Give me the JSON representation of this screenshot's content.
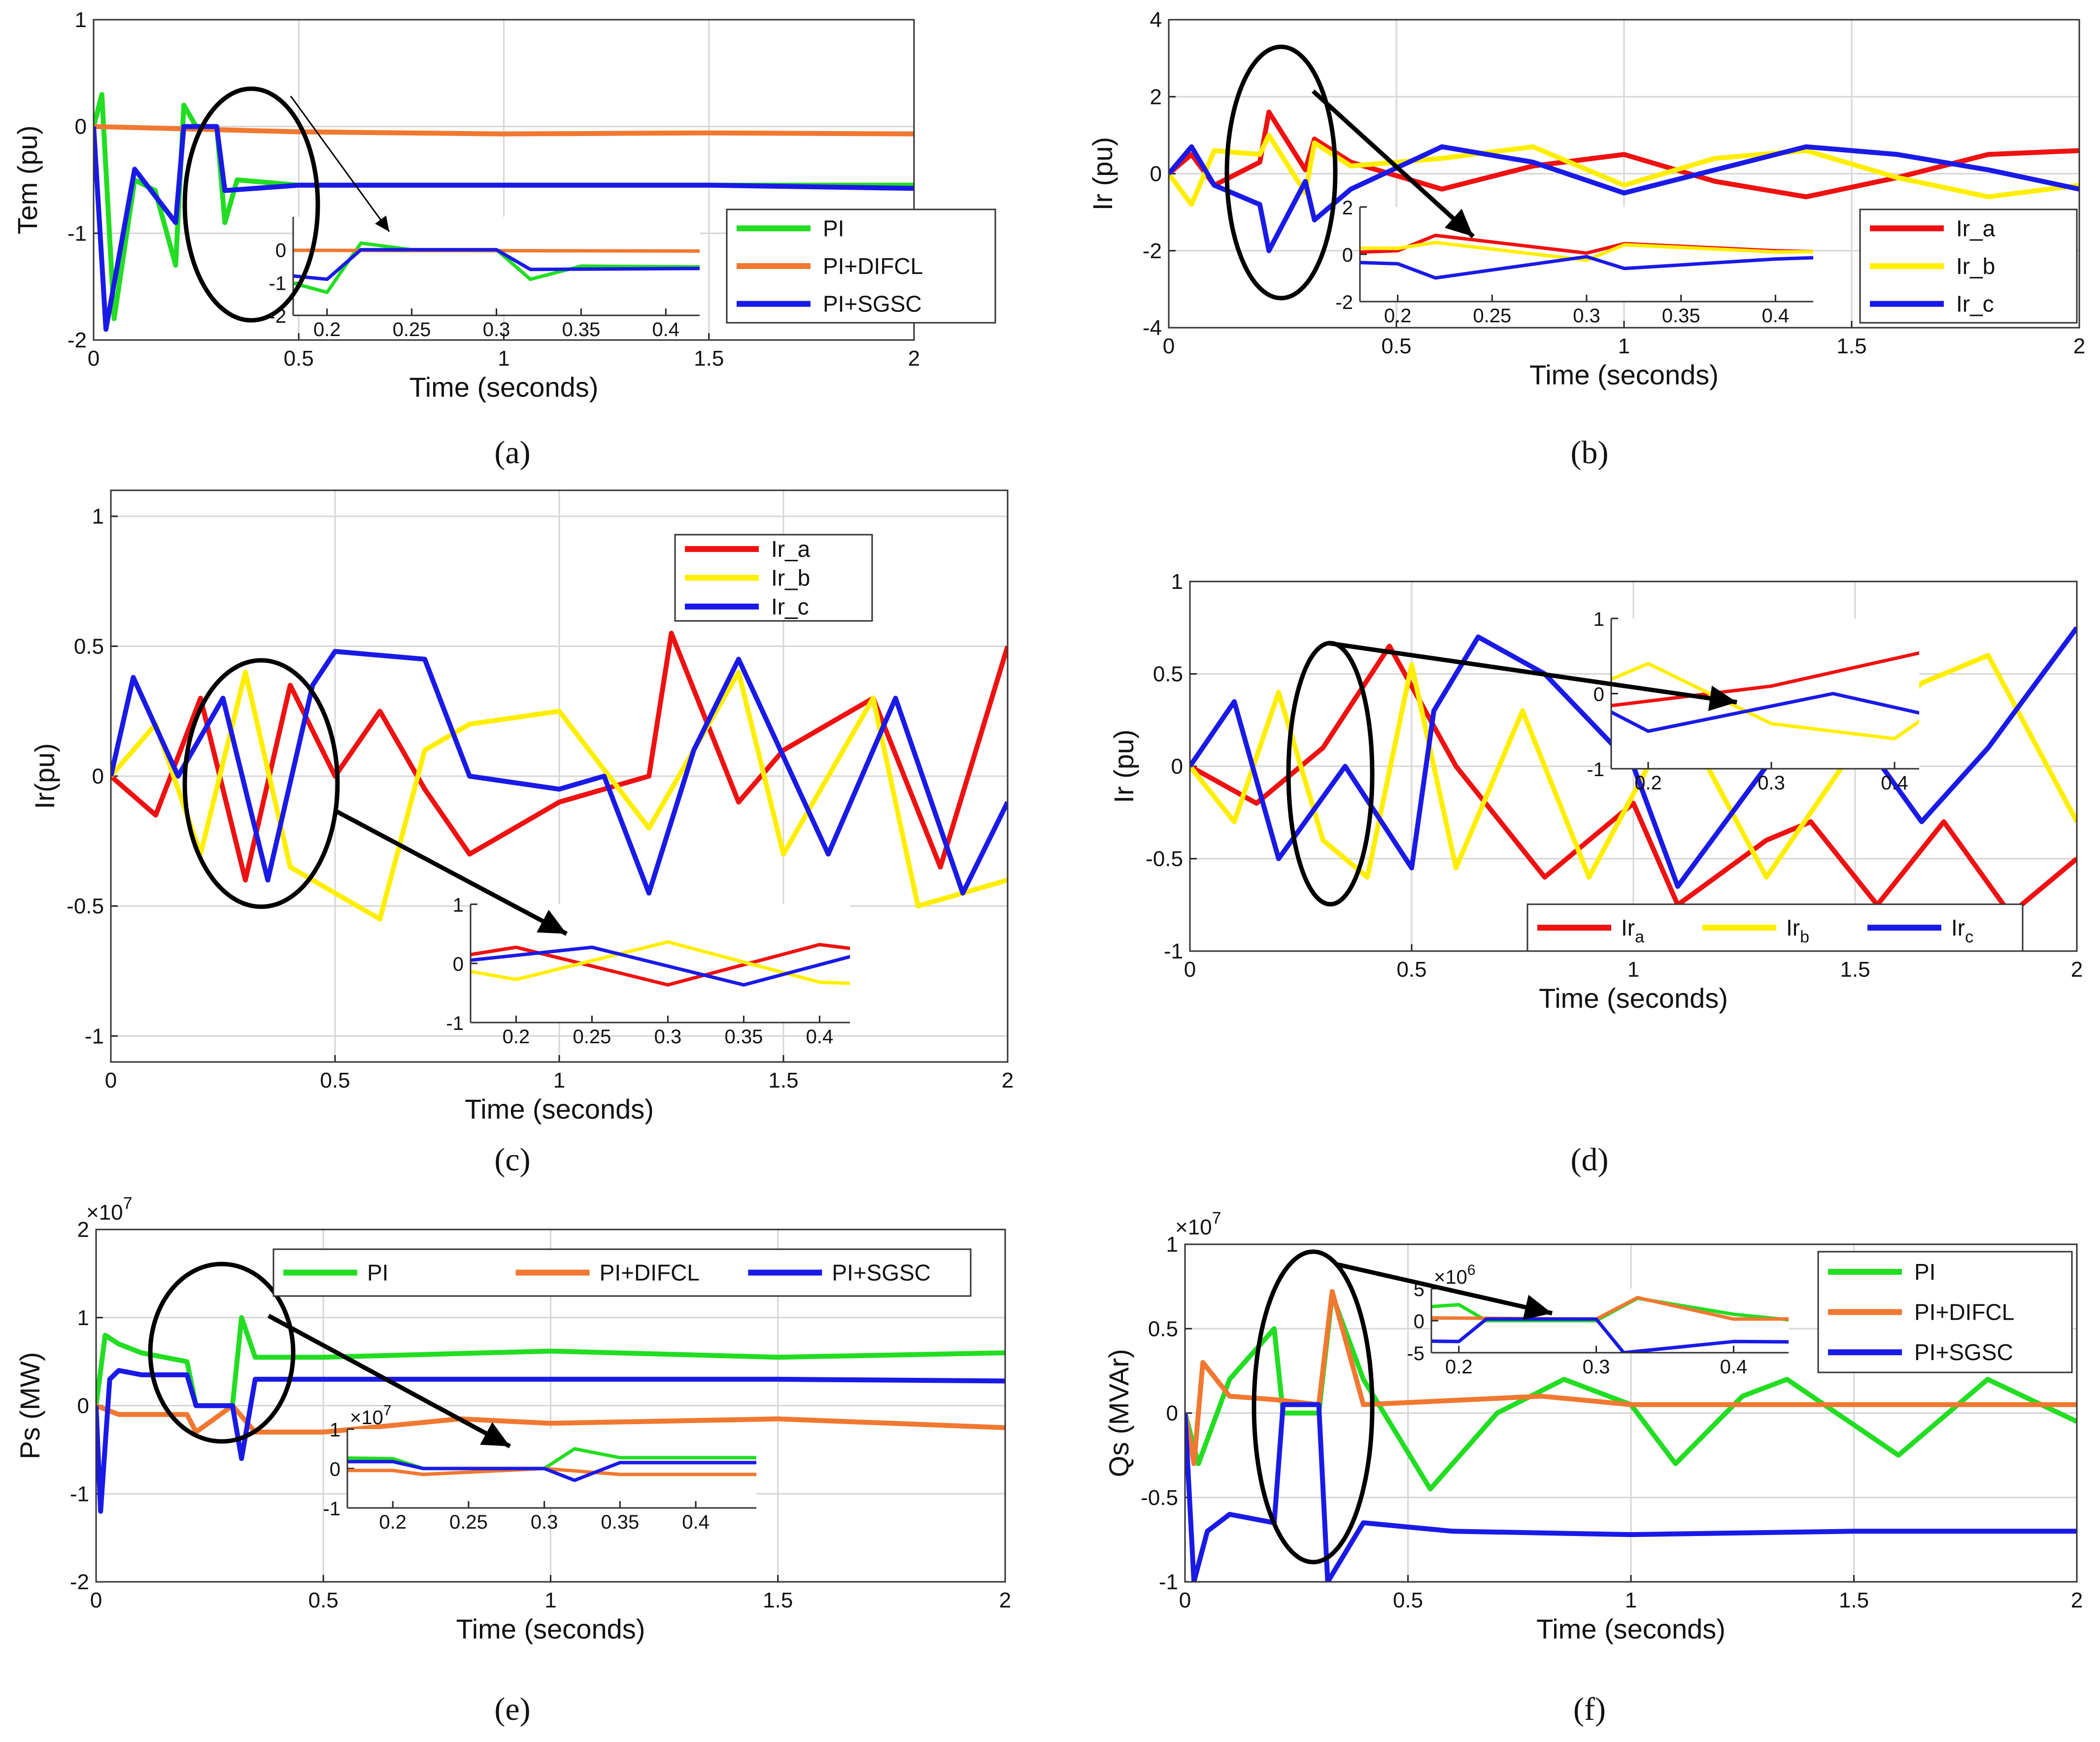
{
  "chart_data": [
    {
      "id": "a",
      "type": "line",
      "panel_label": "(a)",
      "ylabel": "Tem (pu)",
      "xlabel": "Time (seconds)",
      "xlim": [
        0,
        2
      ],
      "ylim": [
        -2,
        1
      ],
      "xticks": [
        0,
        0.5,
        1,
        1.5,
        2
      ],
      "yticks": [
        -2,
        -1,
        0,
        1
      ],
      "grid": true,
      "legend_position": "right",
      "series": [
        {
          "name": "PI",
          "color": "#22dd22",
          "x": [
            0,
            0.02,
            0.05,
            0.1,
            0.15,
            0.2,
            0.22,
            0.25,
            0.3,
            0.32,
            0.35,
            0.5,
            1.0,
            1.5,
            2.0
          ],
          "y": [
            0,
            0.3,
            -1.8,
            -0.5,
            -0.6,
            -1.3,
            0.2,
            0.0,
            0.0,
            -0.9,
            -0.5,
            -0.55,
            -0.55,
            -0.55,
            -0.55
          ]
        },
        {
          "name": "PI+DIFCL",
          "color": "#f07830",
          "x": [
            0,
            0.2,
            0.5,
            1.0,
            1.5,
            2.0
          ],
          "y": [
            0,
            -0.02,
            -0.05,
            -0.07,
            -0.06,
            -0.07
          ]
        },
        {
          "name": "PI+SGSC",
          "color": "#1a1ae6",
          "x": [
            0,
            0.03,
            0.1,
            0.2,
            0.22,
            0.3,
            0.32,
            0.5,
            1.0,
            1.5,
            2.0
          ],
          "y": [
            0,
            -1.9,
            -0.4,
            -0.9,
            0.0,
            0.0,
            -0.6,
            -0.55,
            -0.55,
            -0.55,
            -0.58
          ]
        }
      ],
      "inset": {
        "xlim": [
          0.18,
          0.42
        ],
        "ylim": [
          -2,
          1
        ],
        "xticks": [
          0.2,
          0.25,
          0.3,
          0.35,
          0.4
        ],
        "yticks": [
          -2,
          -1,
          0
        ]
      }
    },
    {
      "id": "b",
      "type": "line",
      "panel_label": "(b)",
      "ylabel": "Ir (pu)",
      "xlabel": "Time (seconds)",
      "xlim": [
        0,
        2
      ],
      "ylim": [
        -4,
        4
      ],
      "xticks": [
        0,
        0.5,
        1,
        1.5,
        2
      ],
      "yticks": [
        -4,
        -2,
        0,
        2,
        4
      ],
      "grid": true,
      "legend_position": "right",
      "series": [
        {
          "name": "Ir_a",
          "color": "#ee1111",
          "x": [
            0,
            0.05,
            0.1,
            0.2,
            0.22,
            0.3,
            0.32,
            0.4,
            0.6,
            0.8,
            1.0,
            1.2,
            1.4,
            1.6,
            1.8,
            2.0
          ],
          "y": [
            0,
            0.5,
            -0.3,
            0.3,
            1.6,
            0.1,
            0.9,
            0.3,
            -0.4,
            0.2,
            0.5,
            -0.2,
            -0.6,
            -0.1,
            0.5,
            0.6
          ]
        },
        {
          "name": "Ir_b",
          "color": "#ffee00",
          "x": [
            0,
            0.05,
            0.1,
            0.2,
            0.22,
            0.3,
            0.32,
            0.4,
            0.6,
            0.8,
            1.0,
            1.2,
            1.4,
            1.6,
            1.8,
            2.0
          ],
          "y": [
            0,
            -0.8,
            0.6,
            0.5,
            1.0,
            -0.5,
            0.8,
            0.2,
            0.4,
            0.7,
            -0.3,
            0.4,
            0.6,
            -0.1,
            -0.6,
            -0.3
          ]
        },
        {
          "name": "Ir_c",
          "color": "#1a1ae6",
          "x": [
            0,
            0.05,
            0.1,
            0.2,
            0.22,
            0.3,
            0.32,
            0.4,
            0.6,
            0.8,
            1.0,
            1.2,
            1.4,
            1.6,
            1.8,
            2.0
          ],
          "y": [
            0,
            0.7,
            -0.3,
            -0.8,
            -2.0,
            -0.2,
            -1.2,
            -0.4,
            0.7,
            0.3,
            -0.5,
            0.1,
            0.7,
            0.5,
            0.1,
            -0.4
          ]
        }
      ],
      "inset": {
        "xlim": [
          0.18,
          0.42
        ],
        "ylim": [
          -2,
          2
        ],
        "xticks": [
          0.2,
          0.25,
          0.3,
          0.35,
          0.4
        ],
        "yticks": [
          -2,
          0,
          2
        ]
      }
    },
    {
      "id": "c",
      "type": "line",
      "panel_label": "(c)",
      "ylabel": "Ir(pu)",
      "xlabel": "Time (seconds)",
      "xlim": [
        0,
        2
      ],
      "ylim": [
        -1.1,
        1.1
      ],
      "xticks": [
        0,
        0.5,
        1,
        1.5,
        2
      ],
      "yticks": [
        -1,
        -0.5,
        0,
        0.5,
        1
      ],
      "grid": true,
      "legend_position": "top-right",
      "series": [
        {
          "name": "Ir_a",
          "color": "#ee1111",
          "x": [
            0,
            0.1,
            0.2,
            0.3,
            0.4,
            0.5,
            0.6,
            0.7,
            0.8,
            1.0,
            1.2,
            1.25,
            1.4,
            1.5,
            1.7,
            1.85,
            2.0
          ],
          "y": [
            0,
            -0.15,
            0.3,
            -0.4,
            0.35,
            0.0,
            0.25,
            -0.05,
            -0.3,
            -0.1,
            0.0,
            0.55,
            -0.1,
            0.1,
            0.3,
            -0.35,
            0.5
          ]
        },
        {
          "name": "Ir_b",
          "color": "#ffee00",
          "x": [
            0,
            0.1,
            0.2,
            0.3,
            0.4,
            0.5,
            0.6,
            0.7,
            0.8,
            1.0,
            1.2,
            1.4,
            1.5,
            1.7,
            1.8,
            2.0
          ],
          "y": [
            0,
            0.2,
            -0.3,
            0.4,
            -0.35,
            -0.45,
            -0.55,
            0.1,
            0.2,
            0.25,
            -0.2,
            0.4,
            -0.3,
            0.3,
            -0.5,
            -0.4
          ]
        },
        {
          "name": "Ir_c",
          "color": "#1a1ae6",
          "x": [
            0,
            0.05,
            0.15,
            0.25,
            0.35,
            0.45,
            0.5,
            0.7,
            0.8,
            1.0,
            1.1,
            1.2,
            1.3,
            1.4,
            1.6,
            1.75,
            1.9,
            2.0
          ],
          "y": [
            0,
            0.38,
            0.0,
            0.3,
            -0.4,
            0.35,
            0.48,
            0.45,
            0.0,
            -0.05,
            0.0,
            -0.45,
            0.1,
            0.45,
            -0.3,
            0.3,
            -0.45,
            -0.1
          ]
        }
      ],
      "inset": {
        "xlim": [
          0.17,
          0.42
        ],
        "ylim": [
          -1,
          1
        ],
        "xticks": [
          0.2,
          0.25,
          0.3,
          0.35,
          0.4
        ],
        "yticks": [
          -1,
          0,
          1
        ]
      }
    },
    {
      "id": "d",
      "type": "line",
      "panel_label": "(d)",
      "ylabel": "Ir (pu)",
      "xlabel": "Time (seconds)",
      "xlim": [
        0,
        2
      ],
      "ylim": [
        -1,
        1
      ],
      "xticks": [
        0,
        0.5,
        1,
        1.5,
        2
      ],
      "yticks": [
        -1,
        -0.5,
        0,
        0.5,
        1
      ],
      "grid": true,
      "legend_position": "bottom",
      "legend_labels": [
        {
          "base": "Ir",
          "sub": "a"
        },
        {
          "base": "Ir",
          "sub": "b"
        },
        {
          "base": "Ir",
          "sub": "c"
        }
      ],
      "series": [
        {
          "name": "Ira",
          "color": "#ee1111",
          "x": [
            0,
            0.15,
            0.3,
            0.45,
            0.6,
            0.8,
            1.0,
            1.1,
            1.3,
            1.4,
            1.55,
            1.7,
            1.85,
            2.0
          ],
          "y": [
            0,
            -0.2,
            0.1,
            0.65,
            0.0,
            -0.6,
            -0.2,
            -0.75,
            -0.4,
            -0.3,
            -0.75,
            -0.3,
            -0.8,
            -0.5
          ]
        },
        {
          "name": "Irb",
          "color": "#ffee00",
          "x": [
            0,
            0.1,
            0.2,
            0.3,
            0.4,
            0.5,
            0.6,
            0.75,
            0.9,
            1.1,
            1.3,
            1.5,
            1.65,
            1.8,
            2.0
          ],
          "y": [
            0,
            -0.3,
            0.4,
            -0.4,
            -0.6,
            0.55,
            -0.55,
            0.3,
            -0.6,
            0.3,
            -0.6,
            0.1,
            0.45,
            0.6,
            -0.3
          ]
        },
        {
          "name": "Irc",
          "color": "#1a1ae6",
          "x": [
            0,
            0.1,
            0.2,
            0.35,
            0.5,
            0.55,
            0.65,
            0.8,
            1.0,
            1.1,
            1.3,
            1.5,
            1.65,
            1.8,
            2.0
          ],
          "y": [
            0,
            0.35,
            -0.5,
            0.0,
            -0.55,
            0.3,
            0.7,
            0.5,
            0.0,
            -0.65,
            0.0,
            0.2,
            -0.3,
            0.1,
            0.75
          ]
        }
      ],
      "inset": {
        "xlim": [
          0.17,
          0.42
        ],
        "ylim": [
          -1,
          1
        ],
        "xticks": [
          0.2,
          0.3,
          0.4
        ],
        "yticks": [
          -1,
          0,
          1
        ]
      }
    },
    {
      "id": "e",
      "type": "line",
      "panel_label": "(e)",
      "ylabel": "Ps (MW)",
      "xlabel": "Time (seconds)",
      "exponent_label": "×10",
      "exponent": "7",
      "xlim": [
        0,
        2
      ],
      "ylim": [
        -2,
        2
      ],
      "xticks": [
        0,
        0.5,
        1,
        1.5,
        2
      ],
      "yticks": [
        -2,
        -1,
        0,
        1,
        2
      ],
      "grid": true,
      "legend_position": "top",
      "series": [
        {
          "name": "PI",
          "color": "#22dd22",
          "x": [
            0,
            0.02,
            0.05,
            0.1,
            0.2,
            0.22,
            0.3,
            0.32,
            0.35,
            0.5,
            1.0,
            1.5,
            2.0
          ],
          "y": [
            0,
            0.8,
            0.7,
            0.6,
            0.5,
            0.0,
            0.0,
            1.0,
            0.55,
            0.55,
            0.62,
            0.55,
            0.6
          ]
        },
        {
          "name": "PI+DIFCL",
          "color": "#f07830",
          "x": [
            0,
            0.05,
            0.2,
            0.22,
            0.3,
            0.35,
            0.5,
            0.8,
            1.0,
            1.5,
            2.0
          ],
          "y": [
            0,
            -0.1,
            -0.1,
            -0.3,
            0.0,
            -0.3,
            -0.3,
            -0.15,
            -0.2,
            -0.15,
            -0.25
          ]
        },
        {
          "name": "PI+SGSC",
          "color": "#1a1ae6",
          "x": [
            0,
            0.01,
            0.03,
            0.05,
            0.1,
            0.2,
            0.22,
            0.3,
            0.32,
            0.35,
            0.5,
            1.0,
            1.5,
            2.0
          ],
          "y": [
            0,
            -1.2,
            0.3,
            0.4,
            0.35,
            0.35,
            0.0,
            0.0,
            -0.6,
            0.3,
            0.3,
            0.3,
            0.3,
            0.28
          ]
        }
      ],
      "inset": {
        "xlim": [
          0.17,
          0.44
        ],
        "ylim": [
          -1,
          1
        ],
        "xticks": [
          0.2,
          0.25,
          0.3,
          0.35,
          0.4
        ],
        "yticks": [
          -1,
          0,
          1
        ],
        "exponent_label": "×10",
        "exponent": "7"
      }
    },
    {
      "id": "f",
      "type": "line",
      "panel_label": "(f)",
      "ylabel": "Qs (MVAr)",
      "xlabel": "Time (seconds)",
      "exponent_label": "×10",
      "exponent": "7",
      "xlim": [
        0,
        2
      ],
      "ylim": [
        -1,
        1
      ],
      "xticks": [
        0,
        0.5,
        1,
        1.5,
        2
      ],
      "yticks": [
        -1,
        -0.5,
        0,
        0.5,
        1
      ],
      "grid": true,
      "legend_position": "top-right",
      "series": [
        {
          "name": "PI",
          "color": "#22dd22",
          "x": [
            0,
            0.03,
            0.1,
            0.2,
            0.22,
            0.3,
            0.33,
            0.4,
            0.55,
            0.7,
            0.85,
            1.0,
            1.1,
            1.25,
            1.35,
            1.6,
            1.8,
            2.0
          ],
          "y": [
            0,
            -0.3,
            0.2,
            0.5,
            0.0,
            0.0,
            0.7,
            0.2,
            -0.45,
            0.0,
            0.2,
            0.05,
            -0.3,
            0.1,
            0.2,
            -0.25,
            0.2,
            -0.05
          ]
        },
        {
          "name": "PI+DIFCL",
          "color": "#f07830",
          "x": [
            0,
            0.02,
            0.04,
            0.1,
            0.2,
            0.3,
            0.33,
            0.4,
            0.8,
            1.0,
            1.5,
            2.0
          ],
          "y": [
            0,
            -0.3,
            0.3,
            0.1,
            0.08,
            0.05,
            0.72,
            0.05,
            0.1,
            0.05,
            0.05,
            0.05
          ]
        },
        {
          "name": "PI+SGSC",
          "color": "#1a1ae6",
          "x": [
            0,
            0.02,
            0.05,
            0.1,
            0.2,
            0.22,
            0.3,
            0.32,
            0.4,
            0.6,
            1.0,
            1.5,
            2.0
          ],
          "y": [
            0,
            -1.0,
            -0.7,
            -0.6,
            -0.65,
            0.05,
            0.05,
            -1.0,
            -0.65,
            -0.7,
            -0.72,
            -0.7,
            -0.7
          ]
        }
      ],
      "inset": {
        "xlim": [
          0.18,
          0.44
        ],
        "ylim": [
          -5,
          5
        ],
        "xticks": [
          0.2,
          0.3,
          0.4
        ],
        "yticks": [
          -5,
          0,
          5
        ],
        "exponent_label": "×10",
        "exponent": "6"
      }
    }
  ]
}
